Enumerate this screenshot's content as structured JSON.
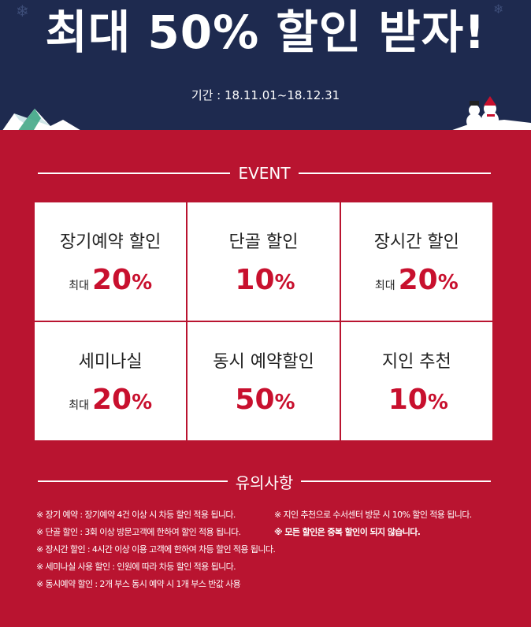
{
  "header": {
    "headline": "최대 50% 할인 받자!",
    "period": "기간 : 18.11.01~18.12.31",
    "colors": {
      "navy": "#1e2a4f",
      "white": "#ffffff"
    }
  },
  "event": {
    "title": "EVENT",
    "items": [
      {
        "name": "장기예약 할인",
        "prefix": "최대",
        "value": "20",
        "unit": "%"
      },
      {
        "name": "단골 할인",
        "prefix": "",
        "value": "10",
        "unit": "%"
      },
      {
        "name": "장시간 할인",
        "prefix": "최대",
        "value": "20",
        "unit": "%"
      },
      {
        "name": "세미나실",
        "prefix": "최대",
        "value": "20",
        "unit": "%"
      },
      {
        "name": "동시 예약할인",
        "prefix": "",
        "value": "50",
        "unit": "%"
      },
      {
        "name": "지인 추천",
        "prefix": "",
        "value": "10",
        "unit": "%"
      }
    ],
    "colors": {
      "background": "#b91430",
      "accent": "#c8102e"
    }
  },
  "notes": {
    "title": "유의사항",
    "left": [
      "※ 장기 예약 : 장기예약 4건 이상 시 차등 할인 적용 됩니다.",
      "※ 단골 할인 : 3회 이상 방문고객에 한하여 할인 적용 됩니다.",
      "※ 장시간 할인 : 4시간 이상 이용 고객에 한하여 차등 할인 적용 됩니다.",
      "※ 세미나실 사용 할인 : 인원에 따라 차등 할인 적용 됩니다.",
      "※ 동시예약 할인 : 2개 부스 동시 예약 시 1개 부스 반값 사용"
    ],
    "right": [
      "※ 지인 추천으로 수서센터 방문 시 10% 할인 적용 됩니다.",
      "※ 모든 할인은 중복 할인이 되지 않습니다."
    ]
  }
}
